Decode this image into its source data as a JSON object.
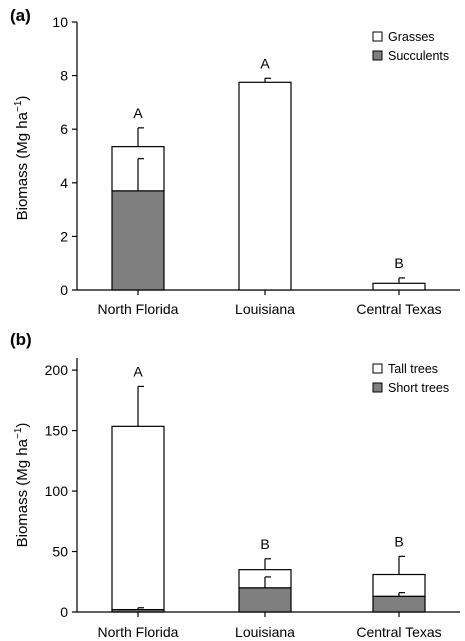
{
  "chart_data": [
    {
      "type": "bar",
      "stacked": true,
      "panel_label": "(a)",
      "categories": [
        "North Florida",
        "Louisiana",
        "Central Texas"
      ],
      "ylabel": "Biomass (Mg ha",
      "ylabel_unit_exp": "−1",
      "ylabel_close": ")",
      "ylim": [
        0,
        10
      ],
      "yticks": [
        0,
        2,
        4,
        6,
        8,
        10
      ],
      "series": [
        {
          "name": "Succulents",
          "color": "#7f7f7f",
          "values": [
            3.7,
            0,
            0
          ],
          "error": [
            1.2,
            0,
            0
          ]
        },
        {
          "name": "Grasses",
          "color": "#ffffff",
          "values": [
            1.65,
            7.75,
            0.25
          ],
          "error": [
            0.7,
            0.15,
            0.2
          ]
        }
      ],
      "significance": [
        "A",
        "A",
        "B"
      ],
      "legend_position": "top-right",
      "grid": false
    },
    {
      "type": "bar",
      "stacked": true,
      "panel_label": "(b)",
      "categories": [
        "North Florida",
        "Louisiana",
        "Central Texas"
      ],
      "ylabel": "Biomass (Mg ha",
      "ylabel_unit_exp": "−1",
      "ylabel_close": ")",
      "ylim": [
        0,
        210
      ],
      "yticks": [
        0,
        50,
        100,
        150,
        200
      ],
      "series": [
        {
          "name": "Short trees",
          "color": "#7f7f7f",
          "values": [
            2,
            20,
            13
          ],
          "error": [
            1.5,
            9,
            3
          ]
        },
        {
          "name": "Tall trees",
          "color": "#ffffff",
          "values": [
            151.5,
            15,
            18
          ],
          "error": [
            33,
            9,
            15
          ]
        }
      ],
      "significance": [
        "A",
        "B",
        "B"
      ],
      "legend_position": "top-right",
      "grid": false
    }
  ]
}
